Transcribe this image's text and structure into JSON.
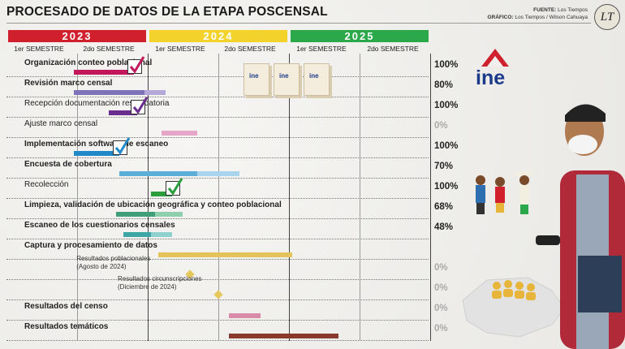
{
  "title": "PROCESADO DE DATOS DE LA ETAPA POSCENSAL",
  "credits": {
    "fuente_label": "FUENTE:",
    "fuente": "Los Tiempos",
    "grafico_label": "GRÁFICO:",
    "grafico": "Los Tiempos / Wilson Cahuaya"
  },
  "logo": "LT",
  "ine_label": "ine",
  "colors": {
    "y2023": "#d0202e",
    "y2024": "#f2d22b",
    "y2025": "#2aa84a"
  },
  "chart_data": {
    "type": "gantt",
    "years": [
      "2023",
      "2024",
      "2025"
    ],
    "semesters": [
      "1er SEMESTRE",
      "2do SEMESTRE",
      "1er SEMESTRE",
      "2do SEMESTRE",
      "1er SEMESTRE",
      "2do SEMESTRE"
    ],
    "tasks": [
      {
        "label": "Organización conteo poblacional",
        "bold": true,
        "pct": "100%",
        "bars": [
          {
            "start": 0.95,
            "end": 1.8,
            "color": "#c2185b"
          }
        ],
        "check": true
      },
      {
        "label": "Revisión marco censal",
        "bold": true,
        "pct": "80%",
        "bars": [
          {
            "start": 0.95,
            "end": 1.95,
            "color": "#7e73b8"
          },
          {
            "start": 1.95,
            "end": 2.25,
            "color": "#b6a9d9"
          }
        ],
        "check": false
      },
      {
        "label": "Recepción documentación respaldatoria",
        "bold": false,
        "pct": "100%",
        "bars": [
          {
            "start": 1.45,
            "end": 1.85,
            "color": "#6a2c8f"
          }
        ],
        "check": true
      },
      {
        "label": "Ajuste marco censal",
        "bold": false,
        "pct": "0%",
        "bars": [
          {
            "start": 2.2,
            "end": 2.7,
            "color": "#e6a6c8"
          }
        ],
        "check": false
      },
      {
        "label": "Implementación software de escaneo",
        "bold": true,
        "pct": "100%",
        "bars": [
          {
            "start": 0.95,
            "end": 1.6,
            "color": "#1e88c8"
          }
        ],
        "check": true
      },
      {
        "label": "Encuesta de cobertura",
        "bold": true,
        "pct": "70%",
        "bars": [
          {
            "start": 1.6,
            "end": 2.7,
            "color": "#5aaed8"
          },
          {
            "start": 2.7,
            "end": 3.3,
            "color": "#a9d4ee"
          }
        ],
        "check": false
      },
      {
        "label": "Recolección",
        "bold": false,
        "pct": "100%",
        "bars": [
          {
            "start": 2.05,
            "end": 2.35,
            "color": "#2a9d3c"
          }
        ],
        "check": true
      },
      {
        "label": "Limpieza, validación de ubicación geográfica y conteo poblacional",
        "bold": true,
        "pct": "68%",
        "bars": [
          {
            "start": 1.55,
            "end": 2.1,
            "color": "#3f9f79"
          },
          {
            "start": 2.1,
            "end": 2.5,
            "color": "#8fcfae"
          }
        ],
        "check": false
      },
      {
        "label": "Escaneo de los cuestionarios censales",
        "bold": true,
        "pct": "48%",
        "bars": [
          {
            "start": 1.65,
            "end": 2.05,
            "color": "#3fa6a6"
          },
          {
            "start": 2.05,
            "end": 2.35,
            "color": "#8fd1cf"
          }
        ],
        "check": false
      },
      {
        "label": "Captura y procesamiento de datos",
        "bold": true,
        "pct": "",
        "bars": [
          {
            "start": 2.15,
            "end": 4.05,
            "color": "#e3c35a"
          }
        ],
        "check": false
      },
      {
        "label": "",
        "bold": false,
        "pct": "0%",
        "bars": [],
        "check": false
      },
      {
        "label": "",
        "bold": false,
        "pct": "0%",
        "bars": [],
        "check": false
      },
      {
        "label": "Resultados del censo",
        "bold": true,
        "pct": "0%",
        "bars": [
          {
            "start": 3.15,
            "end": 3.6,
            "color": "#d98aa8"
          }
        ],
        "check": false
      },
      {
        "label": "Resultados temáticos",
        "bold": true,
        "pct": "0%",
        "bars": [
          {
            "start": 3.15,
            "end": 4.7,
            "color": "#8a3a2a"
          }
        ],
        "check": false
      }
    ],
    "milestones": [
      {
        "line1": "Resultados poblacionales",
        "line2": "(Agosto de 2024)",
        "at": 2.6
      },
      {
        "line1": "Resultados circunscripciones",
        "line2": "(Diciembre de 2024)",
        "at": 3.0
      }
    ]
  }
}
